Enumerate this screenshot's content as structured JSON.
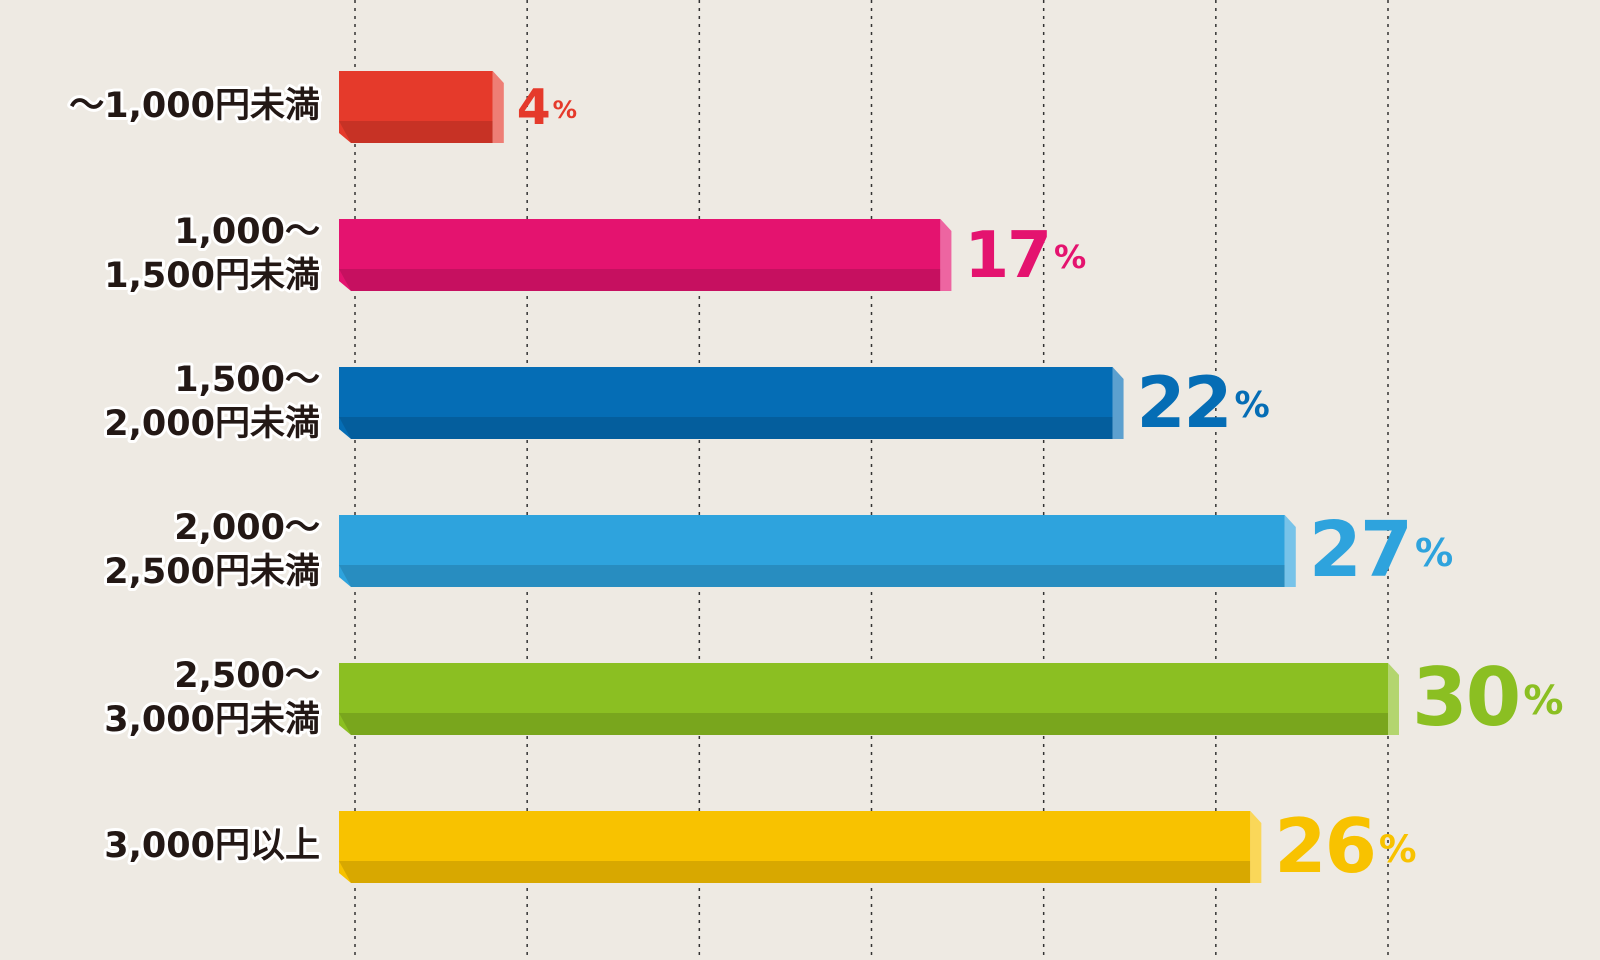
{
  "chart_data": {
    "type": "bar",
    "orientation": "horizontal",
    "categories": [
      [
        "～1,000円未満"
      ],
      [
        "1,000～",
        "1,500円未満"
      ],
      [
        "1,500～",
        "2,000円未満"
      ],
      [
        "2,000～",
        "2,500円未満"
      ],
      [
        "2,500～",
        "3,000円未満"
      ],
      [
        "3,000円以上"
      ]
    ],
    "values": [
      4,
      17,
      22,
      27,
      30,
      26
    ],
    "value_labels": [
      "4%",
      "17%",
      "22%",
      "27%",
      "30%",
      "26%"
    ],
    "colors": [
      "#e53a2b",
      "#e4136f",
      "#056db5",
      "#2ea3dd",
      "#8bbf22",
      "#f8c200"
    ],
    "xlim": [
      0,
      30
    ],
    "xticks": [
      0,
      5,
      10,
      15,
      20,
      25,
      30
    ],
    "grid": true
  }
}
